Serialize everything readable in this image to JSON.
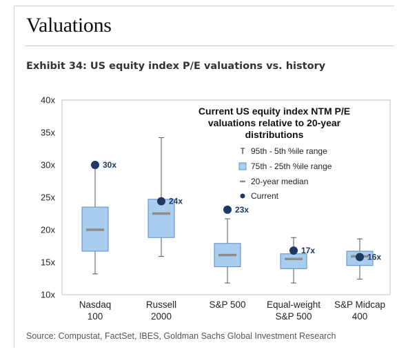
{
  "page": {
    "heading": "Valuations",
    "exhibit_title": "Exhibit 34: US equity index P/E valuations vs. history",
    "source": "Source: Compustat, FactSet, IBES, Goldman Sachs Global Investment Research"
  },
  "chart_data": {
    "type": "box",
    "title": "Current US equity index NTM P/E valuations relative to 20-year distributions",
    "title_lines": [
      "Current US equity index NTM P/E",
      "valuations relative to 20-year",
      "distributions"
    ],
    "ylim": [
      10,
      40
    ],
    "yticks": [
      10,
      15,
      20,
      25,
      30,
      35,
      40
    ],
    "ytick_labels": [
      "10x",
      "15x",
      "20x",
      "25x",
      "30x",
      "35x",
      "40x"
    ],
    "categories": [
      {
        "label_lines": [
          "Nasdaq",
          "100"
        ],
        "p5": 13.2,
        "p25": 16.7,
        "median": 20.0,
        "p75": 23.5,
        "p95": 29.5,
        "current": 30.0,
        "current_label": "30x"
      },
      {
        "label_lines": [
          "Russell",
          "2000"
        ],
        "p5": 15.9,
        "p25": 18.8,
        "median": 22.5,
        "p75": 24.7,
        "p95": 34.2,
        "current": 24.4,
        "current_label": "24x"
      },
      {
        "label_lines": [
          "S&P 500"
        ],
        "p5": 11.8,
        "p25": 14.3,
        "median": 16.1,
        "p75": 17.9,
        "p95": 21.7,
        "current": 23.1,
        "current_label": "23x"
      },
      {
        "label_lines": [
          "Equal-weight",
          "S&P 500"
        ],
        "p5": 11.8,
        "p25": 14.0,
        "median": 15.5,
        "p75": 16.3,
        "p95": 18.8,
        "current": 16.8,
        "current_label": "17x"
      },
      {
        "label_lines": [
          "S&P Midcap",
          "400"
        ],
        "p5": 12.4,
        "p25": 14.5,
        "median": 15.9,
        "p75": 16.7,
        "p95": 18.6,
        "current": 15.8,
        "current_label": "16x"
      }
    ],
    "legend": [
      {
        "symbol": "T",
        "kind": "whisker",
        "label": "95th - 5th %ile range"
      },
      {
        "kind": "box",
        "label": "75th - 25th %ile range"
      },
      {
        "kind": "median",
        "label": "20-year median"
      },
      {
        "kind": "current",
        "label": "Current"
      }
    ],
    "colors": {
      "box_fill": "#a9cdee",
      "box_stroke": "#5b8fc9",
      "median": "#8c8c8c",
      "whisker": "#555555",
      "current": "#1f3864",
      "value_label": "#1f3864"
    }
  }
}
